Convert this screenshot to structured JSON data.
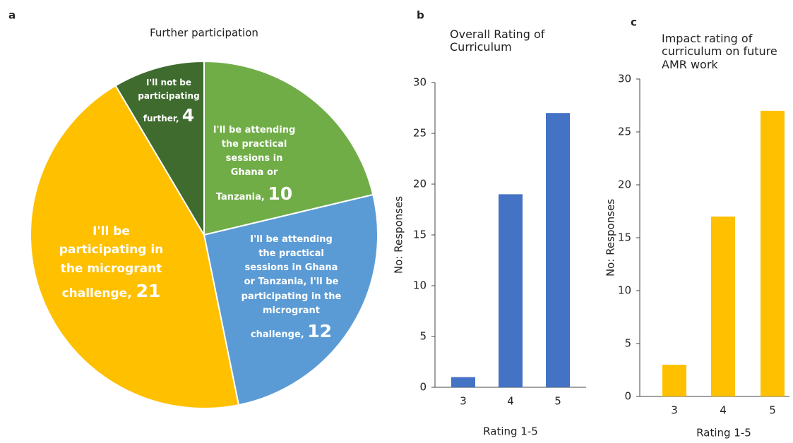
{
  "chart_data": [
    {
      "type": "pie",
      "panel_label": "a",
      "title": "Further participation",
      "categories": [
        "I'll be attending the practical sessions in Ghana or Tanzania,",
        "I'll be attending the practical sessions in Ghana or Tanzania, I'll be participating in the microgrant challenge,",
        "I'll be participating in the microgrant challenge,",
        "I'll not be participating further,"
      ],
      "values": [
        10,
        12,
        21,
        4
      ],
      "colors": [
        "#70ad47",
        "#5b9bd5",
        "#ffc000",
        "#3f6b2f"
      ]
    },
    {
      "type": "bar",
      "panel_label": "b",
      "title": "Overall Rating of Curriculum",
      "categories": [
        "3",
        "4",
        "5"
      ],
      "values": [
        1,
        19,
        27
      ],
      "color": "#4472c4",
      "ylim": [
        0,
        30
      ],
      "yticks": [
        0,
        5,
        10,
        15,
        20,
        25,
        30
      ],
      "ylabel": "No: Responses",
      "xlabel": "Rating 1-5"
    },
    {
      "type": "bar",
      "panel_label": "c",
      "title": "Impact rating of curriculum on future AMR work",
      "categories": [
        "3",
        "4",
        "5"
      ],
      "values": [
        3,
        17,
        27
      ],
      "color": "#ffc000",
      "ylim": [
        0,
        30
      ],
      "yticks": [
        0,
        5,
        10,
        15,
        20,
        25,
        30
      ],
      "ylabel": "No: Responses",
      "xlabel": "Rating 1-5"
    }
  ]
}
